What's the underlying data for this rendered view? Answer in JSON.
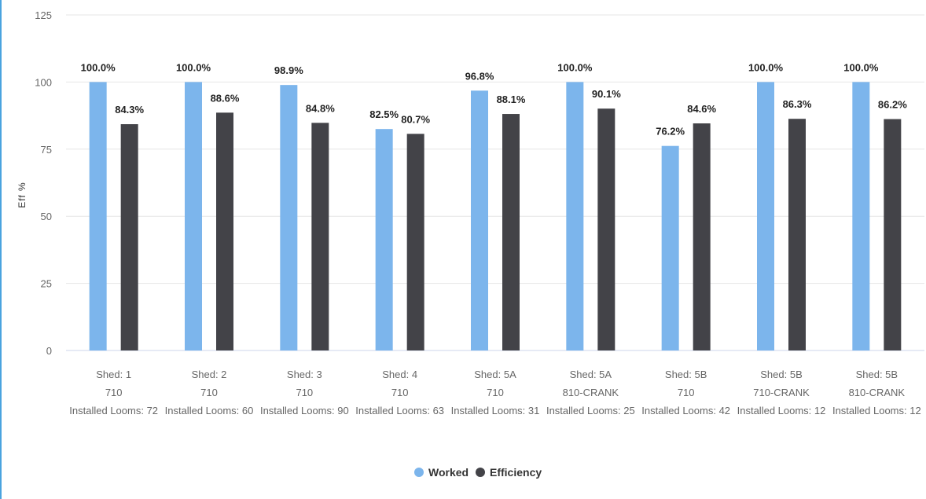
{
  "chart_data": {
    "type": "bar",
    "ylabel": "Eff %",
    "ylim": [
      0,
      125
    ],
    "yticks": [
      0,
      25,
      50,
      75,
      100,
      125
    ],
    "grid": true,
    "legend_position": "bottom-center",
    "categories": [
      [
        "Shed: 1",
        "710",
        "Installed Looms: 72"
      ],
      [
        "Shed: 2",
        "710",
        "Installed Looms: 60"
      ],
      [
        "Shed: 3",
        "710",
        "Installed Looms: 90"
      ],
      [
        "Shed: 4",
        "710",
        "Installed Looms: 63"
      ],
      [
        "Shed: 5A",
        "710",
        "Installed Looms: 31"
      ],
      [
        "Shed: 5A",
        "810-CRANK",
        "Installed Looms: 25"
      ],
      [
        "Shed: 5B",
        "710",
        "Installed Looms: 42"
      ],
      [
        "Shed: 5B",
        "710-CRANK",
        "Installed Looms: 12"
      ],
      [
        "Shed: 5B",
        "810-CRANK",
        "Installed Looms: 12"
      ]
    ],
    "series": [
      {
        "name": "Worked",
        "color": "#7cb5ec",
        "values": [
          100.0,
          100.0,
          98.9,
          82.5,
          96.8,
          100.0,
          76.2,
          100.0,
          100.0
        ],
        "labels": [
          "100.0%",
          "100.0%",
          "98.9%",
          "82.5%",
          "96.8%",
          "100.0%",
          "76.2%",
          "100.0%",
          "100.0%"
        ]
      },
      {
        "name": "Efficiency",
        "color": "#434348",
        "values": [
          84.3,
          88.6,
          84.8,
          80.7,
          88.1,
          90.1,
          84.6,
          86.3,
          86.2
        ],
        "labels": [
          "84.3%",
          "88.6%",
          "84.8%",
          "80.7%",
          "88.1%",
          "90.1%",
          "84.6%",
          "86.3%",
          "86.2%"
        ]
      }
    ]
  }
}
